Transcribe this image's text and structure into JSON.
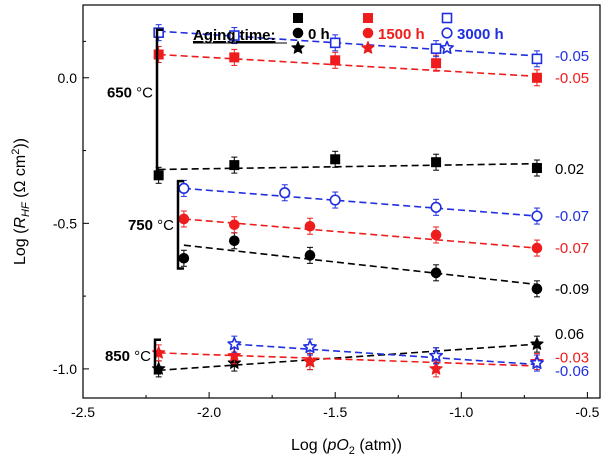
{
  "chart_data": {
    "type": "scatter",
    "xlabel_parts": [
      "Log (",
      "pO",
      "2",
      " (atm))"
    ],
    "ylabel_parts": [
      "Log (",
      "R",
      "HF",
      " (Ω cm",
      "2",
      "))"
    ],
    "xlim": [
      -2.5,
      -0.45
    ],
    "ylim": [
      -1.1,
      0.25
    ],
    "xticks": [
      -2.5,
      -2.0,
      -1.5,
      -1.0,
      -0.5
    ],
    "xtick_labels": [
      "-2.5",
      "-2.0",
      "-1.5",
      "-1.0",
      "-0.5"
    ],
    "yticks": [
      0.0,
      -0.5,
      -1.0
    ],
    "ytick_labels": [
      "0.0",
      "-0.5",
      "-1.0"
    ],
    "legend": {
      "title": "Aging time:",
      "entries": [
        {
          "label": "0 h",
          "color": "#000000",
          "filled": true
        },
        {
          "label": "1500 h",
          "color": "#ee1c1c",
          "filled": true
        },
        {
          "label": "3000 h",
          "color": "#1f2fe0",
          "filled": false
        }
      ]
    },
    "groups": [
      {
        "label": "650",
        "unit": "°C",
        "marker": "square"
      },
      {
        "label": "750",
        "unit": "°C",
        "marker": "circle"
      },
      {
        "label": "850",
        "unit": "°C",
        "marker": "star"
      }
    ],
    "series": [
      {
        "group": 0,
        "aging": "0 h",
        "color": "#000000",
        "filled": true,
        "marker": "square",
        "x": [
          -2.2,
          -1.9,
          -1.5,
          -1.1,
          -0.7
        ],
        "y": [
          -0.335,
          -0.3,
          -0.28,
          -0.29,
          -0.31
        ],
        "slope_label": "0.02",
        "fit": [
          -2.2,
          -0.315,
          -0.7,
          -0.295
        ]
      },
      {
        "group": 0,
        "aging": "1500 h",
        "color": "#ee1c1c",
        "filled": true,
        "marker": "square",
        "x": [
          -2.2,
          -1.9,
          -1.5,
          -1.1,
          -0.7
        ],
        "y": [
          0.08,
          0.07,
          0.06,
          0.05,
          0.0
        ],
        "slope_label": "-0.05",
        "fit": [
          -2.2,
          0.08,
          -0.7,
          0.005
        ]
      },
      {
        "group": 0,
        "aging": "3000 h",
        "color": "#1f2fe0",
        "filled": false,
        "marker": "square",
        "x": [
          -2.2,
          -1.9,
          -1.5,
          -1.1,
          -0.7
        ],
        "y": [
          0.155,
          0.145,
          0.12,
          0.1,
          0.065
        ],
        "slope_label": "-0.05",
        "fit": [
          -2.2,
          0.16,
          -0.7,
          0.075
        ]
      },
      {
        "group": 1,
        "aging": "0 h",
        "color": "#000000",
        "filled": true,
        "marker": "circle",
        "x": [
          -2.1,
          -1.9,
          -1.6,
          -1.1,
          -0.7
        ],
        "y": [
          -0.62,
          -0.56,
          -0.61,
          -0.67,
          -0.725
        ],
        "slope_label": "-0.09",
        "fit": [
          -2.1,
          -0.575,
          -0.7,
          -0.71
        ]
      },
      {
        "group": 1,
        "aging": "1500 h",
        "color": "#ee1c1c",
        "filled": true,
        "marker": "circle",
        "x": [
          -2.1,
          -1.9,
          -1.6,
          -1.1,
          -0.7
        ],
        "y": [
          -0.485,
          -0.505,
          -0.51,
          -0.54,
          -0.585
        ],
        "slope_label": "-0.07",
        "fit": [
          -2.1,
          -0.485,
          -0.7,
          -0.585
        ]
      },
      {
        "group": 1,
        "aging": "3000 h",
        "color": "#1f2fe0",
        "filled": false,
        "marker": "circle",
        "x": [
          -2.1,
          -1.7,
          -1.5,
          -1.1,
          -0.7
        ],
        "y": [
          -0.38,
          -0.395,
          -0.42,
          -0.445,
          -0.475
        ],
        "slope_label": "-0.07",
        "fit": [
          -2.1,
          -0.38,
          -0.7,
          -0.475
        ]
      },
      {
        "group": 2,
        "aging": "0 h",
        "color": "#000000",
        "filled": true,
        "marker": "star",
        "x": [
          -2.2,
          -1.9,
          -1.6,
          -1.1,
          -0.7
        ],
        "y": [
          -1.0,
          -0.98,
          -0.975,
          -0.955,
          -0.915
        ],
        "slope_label": "0.06",
        "fit": [
          -2.2,
          -1.005,
          -0.7,
          -0.915
        ]
      },
      {
        "group": 2,
        "aging": "1500 h",
        "color": "#ee1c1c",
        "filled": true,
        "marker": "star",
        "x": [
          -2.2,
          -1.9,
          -1.6,
          -1.1,
          -0.7
        ],
        "y": [
          -0.945,
          -0.955,
          -0.975,
          -1.0,
          -0.975
        ],
        "slope_label": "-0.03",
        "fit": [
          -2.2,
          -0.945,
          -0.7,
          -0.99
        ]
      },
      {
        "group": 2,
        "aging": "3000 h",
        "color": "#1f2fe0",
        "filled": false,
        "marker": "star",
        "x": [
          -1.9,
          -1.6,
          -1.1,
          -0.7
        ],
        "y": [
          -0.915,
          -0.925,
          -0.955,
          -0.98
        ],
        "slope_label": "-0.06",
        "fit": [
          -1.9,
          -0.915,
          -0.7,
          -0.985
        ]
      }
    ]
  }
}
